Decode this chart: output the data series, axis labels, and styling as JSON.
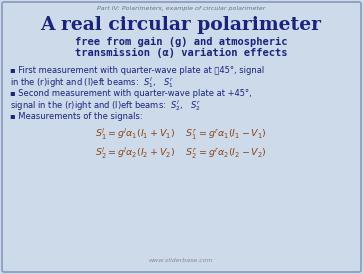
{
  "background_color": "#cddaea",
  "border_color": "#8899bb",
  "supertitle": "Part IV: Polarimeters, example of circular polarimeter",
  "supertitle_color": "#667788",
  "supertitle_fontsize": 4.5,
  "title": "A real circular polarimeter",
  "title_color": "#1a237e",
  "title_fontsize": 13.5,
  "subtitle_line1": "free from gain (g) and atmospheric",
  "subtitle_line2": "transmission (α) variation effects",
  "subtitle_color": "#1a237e",
  "subtitle_fontsize": 7.5,
  "bullet_color": "#1a237e",
  "bullet_fontsize": 6.0,
  "formula_color": "#8B4513",
  "formula_fontsize": 6.8,
  "watermark": "www.sliderbase.com",
  "watermark_fontsize": 4.5,
  "watermark_color": "#888899"
}
